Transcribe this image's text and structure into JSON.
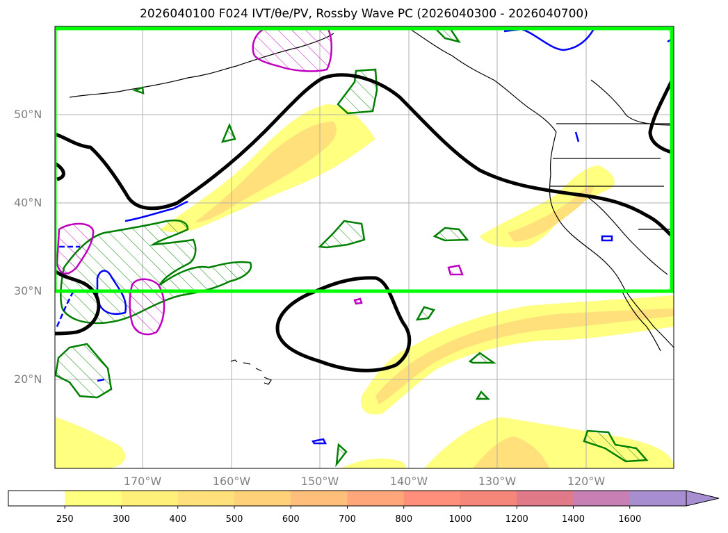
{
  "title": "2026040100 F024 IVT/θe/PV, Rossby Wave PC (2026040300 - 2026040700)",
  "lat_labels": [
    "50°N",
    "40°N",
    "30°N",
    "20°N"
  ],
  "lon_labels": [
    "170°W",
    "160°W",
    "150°W",
    "140°W",
    "130°W",
    "120°W"
  ],
  "colorbar": {
    "ticks": [
      "250",
      "300",
      "400",
      "500",
      "600",
      "700",
      "800",
      "1000",
      "1200",
      "1400",
      "1600"
    ],
    "colors": [
      "#ffffff",
      "#ffff80",
      "#fff07a",
      "#ffe07a",
      "#ffd27a",
      "#ffbf7a",
      "#ffa77a",
      "#ff8f7a",
      "#f4867a",
      "#e07a88",
      "#c880b4",
      "#a78ed0"
    ],
    "extend": "max"
  },
  "colors": {
    "box": "#00ff00",
    "trough_contour": "#000000",
    "green_contour": "#008000",
    "blue_contour": "#0000ff",
    "magenta_contour": "#c000c0",
    "ivt_fill": "#ffff80",
    "ivt_fill_inner": "#ffe07a",
    "grid": "#b0b0b0",
    "coast": "#000000"
  },
  "map": {
    "projection": "Plate Carree",
    "gridlines": true,
    "highlight_box": "30°N–60°N, full width"
  }
}
